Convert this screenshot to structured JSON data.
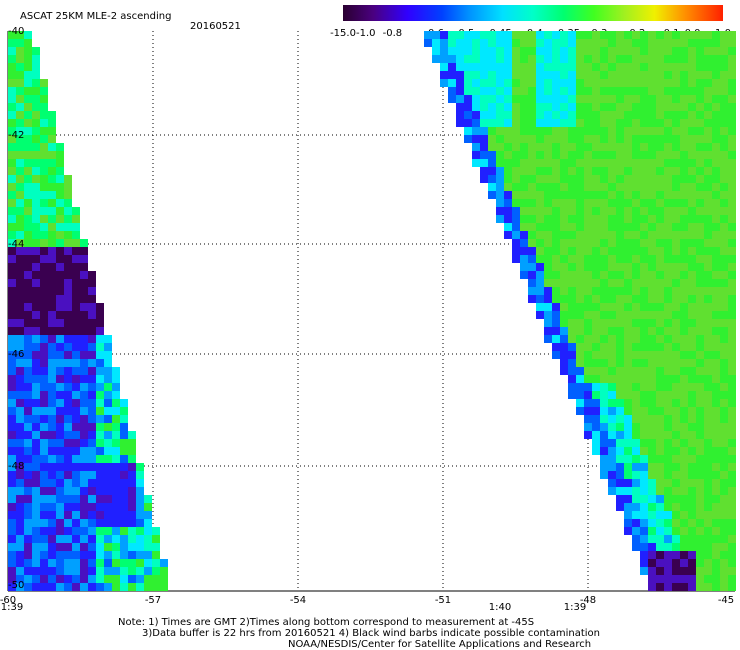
{
  "title": "ASCAT 25KM MLE-2 ascending",
  "date": "20160521",
  "colorbar": {
    "labels": [
      "-15.0",
      "-1.0",
      "-0.8",
      "-0.6",
      "-0.5",
      "-0.45",
      "-0.4",
      "-0.35",
      "-0.3",
      "-0.2",
      "-0.1",
      "0.0",
      "1.0"
    ],
    "colors": [
      "#3a0044",
      "#5a00a8",
      "#2a00ff",
      "#0050ff",
      "#0098ff",
      "#00e0ff",
      "#00ffd0",
      "#00ff80",
      "#30ff30",
      "#88f020",
      "#e0e000",
      "#ff9000",
      "#ff2000"
    ]
  },
  "axes": {
    "lat_labels": [
      "-40",
      "-42",
      "-44",
      "-46",
      "-48",
      "-50"
    ],
    "lon_labels": [
      "-60",
      "-57",
      "-54",
      "-51",
      "-48",
      "-45"
    ]
  },
  "time_labels": [
    "1:39",
    "1:40",
    "1:39"
  ],
  "time_color": "#cc2200",
  "notes": [
    "Note: 1) Times are GMT 2)Times along bottom correspond to measurement at -45S",
    "3)Data buffer is 22 hrs from 20160521 4) Black wind barbs indicate possible contamination",
    "NOAA/NESDIS/Center for Satellite Applications and Research"
  ]
}
